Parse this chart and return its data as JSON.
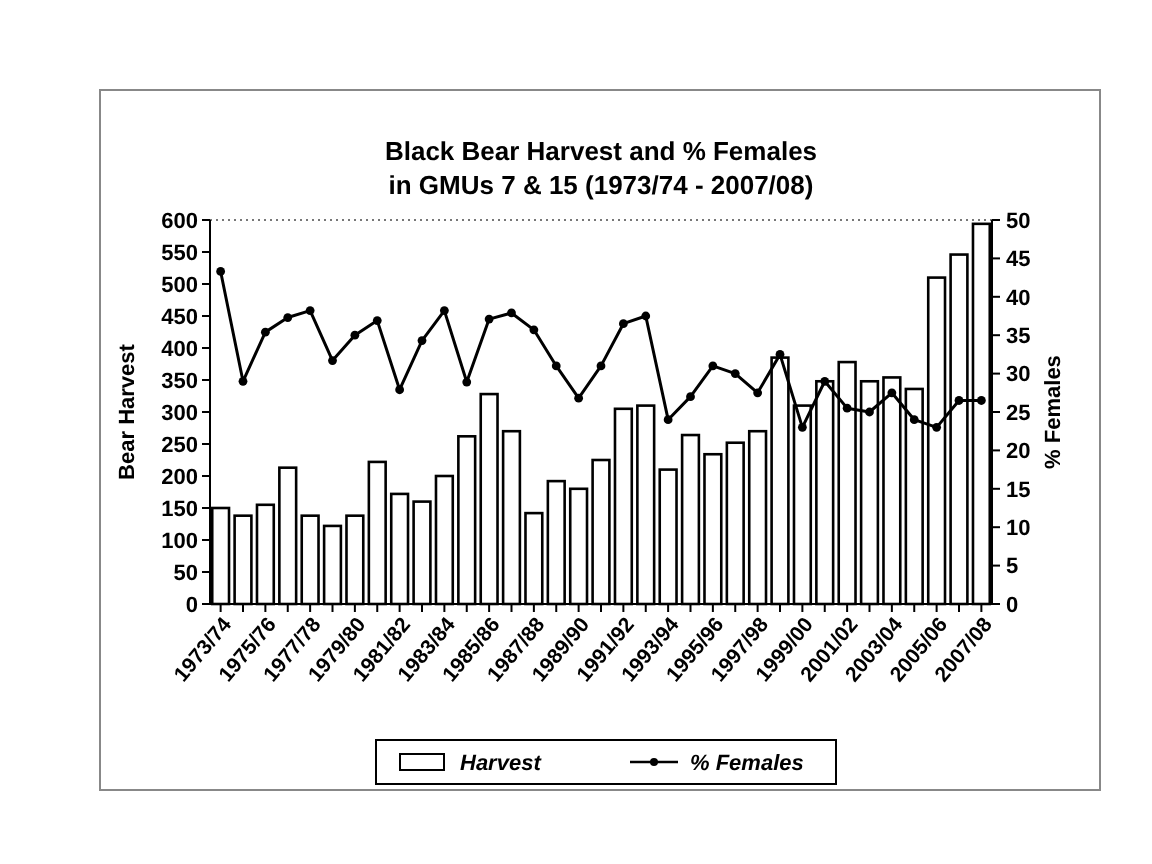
{
  "chart_data": {
    "type": "bar",
    "title": "Black Bear Harvest and % Females\nin GMUs 7 & 15 (1973/74 - 2007/08)",
    "ylabel": "Bear Harvest",
    "y2label": "% Females",
    "categories": [
      "1973/74",
      null,
      "1975/76",
      null,
      "1977/78",
      null,
      "1979/80",
      null,
      "1981/82",
      null,
      "1983/84",
      null,
      "1985/86",
      null,
      "1987/88",
      null,
      "1989/90",
      null,
      "1991/92",
      null,
      "1993/94",
      null,
      "1995/96",
      null,
      "1997/98",
      null,
      "1999/00",
      null,
      "2001/02",
      null,
      "2003/04",
      null,
      "2005/06",
      null,
      "2007/08"
    ],
    "series": [
      {
        "name": "Harvest",
        "color": "#ffffff",
        "values": [
          150,
          138,
          155,
          213,
          138,
          122,
          138,
          222,
          172,
          160,
          200,
          262,
          328,
          270,
          142,
          192,
          180,
          225,
          305,
          310,
          210,
          264,
          234,
          252,
          270,
          385,
          310,
          348,
          378,
          348,
          354,
          336,
          510,
          546,
          594
        ]
      },
      {
        "name": "% Females",
        "type": "line",
        "axis": "y2",
        "color": "#000000",
        "marker": "circle",
        "values": [
          43.3,
          29,
          35.4,
          37.3,
          38.2,
          31.7,
          35,
          36.9,
          27.9,
          34.3,
          38.2,
          28.9,
          37.1,
          37.9,
          35.7,
          31,
          26.8,
          31,
          36.5,
          37.5,
          24,
          27,
          31,
          30,
          27.5,
          32.5,
          23,
          29,
          25.5,
          25,
          27.5,
          24,
          23,
          26.5,
          26.5
        ]
      }
    ],
    "ylim": [
      0,
      600
    ],
    "yticks": [
      0,
      50,
      100,
      150,
      200,
      250,
      300,
      350,
      400,
      450,
      500,
      550,
      600
    ],
    "y2lim": [
      0,
      50
    ],
    "y2ticks": [
      0,
      5,
      10,
      15,
      20,
      25,
      30,
      35,
      40,
      45,
      50
    ],
    "legend": "bottom",
    "grid": false
  }
}
